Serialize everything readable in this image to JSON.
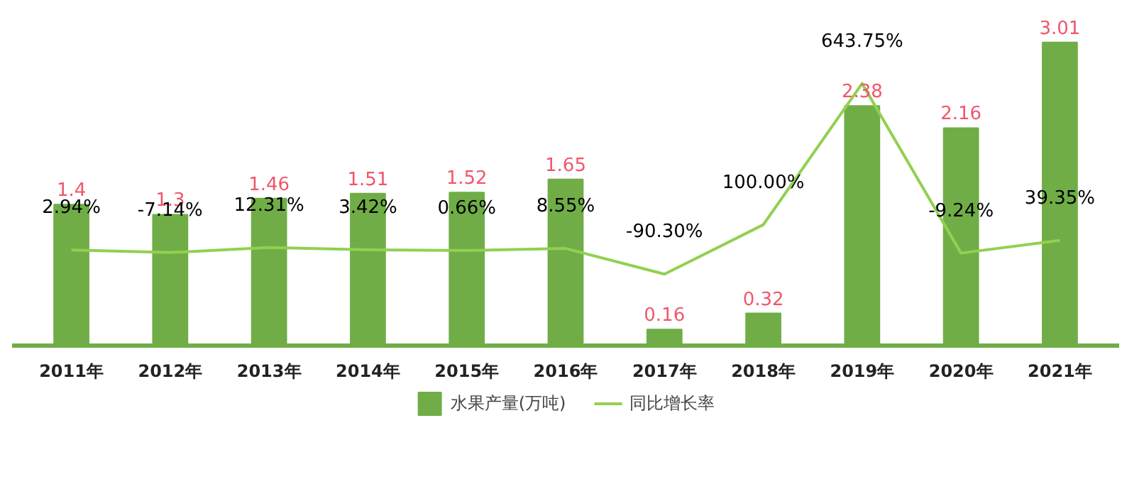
{
  "chart_data": {
    "type": "bar",
    "categories": [
      "2011年",
      "2012年",
      "2013年",
      "2014年",
      "2015年",
      "2016年",
      "2017年",
      "2018年",
      "2019年",
      "2020年",
      "2021年"
    ],
    "series": [
      {
        "name": "水果产量(万吨)",
        "color": "#70ad47",
        "values": [
          1.4,
          1.3,
          1.46,
          1.51,
          1.52,
          1.65,
          0.16,
          0.32,
          2.38,
          2.16,
          3.01
        ]
      },
      {
        "name": "同比增长率",
        "type": "line",
        "axis": "y2",
        "color": "#92d050",
        "values": [
          2.94,
          -7.14,
          12.31,
          3.42,
          0.66,
          8.55,
          -90.3,
          100.0,
          643.75,
          -9.24,
          39.35
        ],
        "value_labels": [
          "2.94%",
          "-7.14%",
          "12.31%",
          "3.42%",
          "0.66%",
          "8.55%",
          "-90.30%",
          "100.00%",
          "643.75%",
          "-9.24%",
          "39.35%"
        ]
      }
    ],
    "data_labels": true,
    "legend": "bottom",
    "tick_labels": "x"
  }
}
